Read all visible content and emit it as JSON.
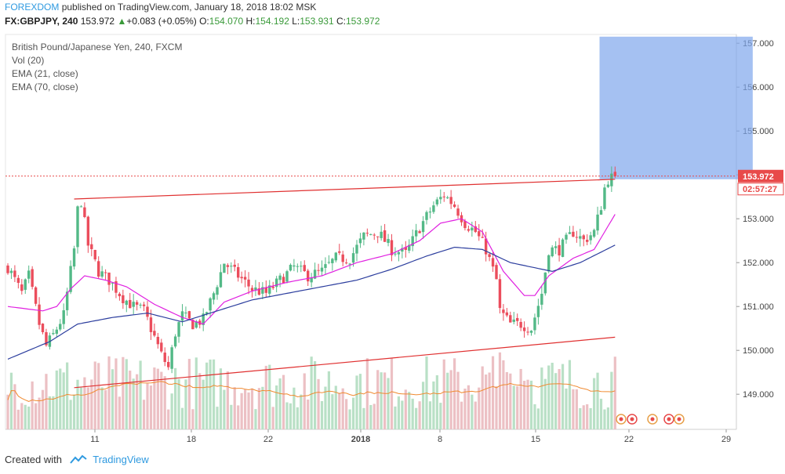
{
  "header": {
    "brand": "FOREXDOM",
    "published": "published on TradingView.com, January 18, 2018 18:02 MSK",
    "symbol": "FX:GBPJPY, 240",
    "last": "153.972",
    "change": "+0.083 (+0.05%)",
    "open_label": "O:",
    "open": "154.070",
    "high_label": "H:",
    "high": "154.192",
    "low_label": "L:",
    "low": "153.931",
    "close_label": "C:",
    "close": "153.972"
  },
  "legend": [
    "British Pound/Japanese Yen, 240, FXCM",
    "Vol (20)",
    "EMA (21, close)",
    "EMA (70, close)"
  ],
  "price_tag": "153.972",
  "time_tag": "02:57:27",
  "footer": {
    "created": "Created with",
    "brand": "TradingView"
  },
  "colors": {
    "up": "#53b987",
    "down": "#eb4d5c",
    "ema21": "#e020e0",
    "ema70": "#2c3e9e",
    "trend": "#e03030",
    "box": "#7fa7ec",
    "vol_up": "#b9e0c6",
    "vol_down": "#ecc0c4",
    "vol_ma": "#f08a30",
    "tag": "#e84a4a"
  },
  "chart_data": {
    "type": "candlestick",
    "y_range": [
      148.2,
      157.2
    ],
    "y_ticks": [
      "157.000",
      "156.000",
      "155.000",
      "154.000",
      "153.000",
      "152.000",
      "151.000",
      "150.000",
      "149.000"
    ],
    "x_ticks": [
      "11",
      "18",
      "22",
      "2018",
      "8",
      "15",
      "22",
      "29"
    ],
    "price_anchors": [
      [
        0,
        151.9
      ],
      [
        4,
        151.3
      ],
      [
        6,
        151.7
      ],
      [
        9,
        150.6
      ],
      [
        11,
        150.1
      ],
      [
        13,
        150.35
      ],
      [
        16,
        150.8
      ],
      [
        19,
        152.3
      ],
      [
        20,
        153.2
      ],
      [
        21,
        153.4
      ],
      [
        23,
        152.4
      ],
      [
        26,
        151.8
      ],
      [
        29,
        151.6
      ],
      [
        33,
        151.2
      ],
      [
        36,
        151.0
      ],
      [
        39,
        150.9
      ],
      [
        42,
        150.3
      ],
      [
        44,
        149.9
      ],
      [
        46,
        149.6
      ],
      [
        48,
        150.4
      ],
      [
        50,
        150.8
      ],
      [
        53,
        150.6
      ],
      [
        56,
        150.7
      ],
      [
        59,
        151.3
      ],
      [
        62,
        152.0
      ],
      [
        66,
        151.7
      ],
      [
        70,
        151.4
      ],
      [
        74,
        151.3
      ],
      [
        78,
        151.6
      ],
      [
        82,
        151.9
      ],
      [
        86,
        151.7
      ],
      [
        90,
        151.8
      ],
      [
        94,
        152.1
      ],
      [
        98,
        152.1
      ],
      [
        102,
        152.6
      ],
      [
        106,
        152.7
      ],
      [
        110,
        152.3
      ],
      [
        114,
        152.2
      ],
      [
        118,
        152.8
      ],
      [
        122,
        153.3
      ],
      [
        125,
        153.55
      ],
      [
        128,
        153.3
      ],
      [
        131,
        152.9
      ],
      [
        134,
        152.7
      ],
      [
        137,
        152.3
      ],
      [
        140,
        151.6
      ],
      [
        141,
        150.9
      ],
      [
        144,
        150.6
      ],
      [
        147,
        150.6
      ],
      [
        150,
        150.5
      ],
      [
        153,
        151.3
      ],
      [
        155,
        152.3
      ],
      [
        158,
        152.3
      ],
      [
        162,
        152.7
      ],
      [
        165,
        152.5
      ],
      [
        168,
        152.7
      ],
      [
        170,
        153.3
      ],
      [
        171,
        153.7
      ],
      [
        172,
        153.9
      ],
      [
        174,
        153.97
      ]
    ],
    "ema21_anchors": [
      [
        0,
        151.0
      ],
      [
        10,
        150.9
      ],
      [
        14,
        151.0
      ],
      [
        18,
        151.4
      ],
      [
        22,
        151.7
      ],
      [
        28,
        151.6
      ],
      [
        34,
        151.45
      ],
      [
        42,
        151.05
      ],
      [
        50,
        150.75
      ],
      [
        56,
        150.6
      ],
      [
        62,
        151.1
      ],
      [
        70,
        151.35
      ],
      [
        80,
        151.55
      ],
      [
        90,
        151.7
      ],
      [
        100,
        152.0
      ],
      [
        110,
        152.2
      ],
      [
        118,
        152.5
      ],
      [
        124,
        152.9
      ],
      [
        130,
        153.0
      ],
      [
        136,
        152.7
      ],
      [
        142,
        151.8
      ],
      [
        148,
        151.25
      ],
      [
        151,
        151.25
      ],
      [
        155,
        151.7
      ],
      [
        162,
        152.1
      ],
      [
        168,
        152.3
      ],
      [
        174,
        153.1
      ]
    ],
    "ema70_anchors": [
      [
        0,
        149.8
      ],
      [
        12,
        150.2
      ],
      [
        20,
        150.6
      ],
      [
        30,
        150.75
      ],
      [
        40,
        150.85
      ],
      [
        50,
        150.65
      ],
      [
        60,
        150.9
      ],
      [
        70,
        151.15
      ],
      [
        80,
        151.3
      ],
      [
        90,
        151.45
      ],
      [
        100,
        151.6
      ],
      [
        110,
        151.85
      ],
      [
        120,
        152.15
      ],
      [
        128,
        152.35
      ],
      [
        136,
        152.3
      ],
      [
        144,
        152.0
      ],
      [
        150,
        151.9
      ],
      [
        156,
        151.8
      ],
      [
        164,
        152.0
      ],
      [
        174,
        152.4
      ]
    ],
    "trend_lines": [
      {
        "from": [
          19,
          153.45
        ],
        "to": [
          174,
          153.9
        ]
      },
      {
        "from": [
          19,
          149.15
        ],
        "to": [
          174,
          150.3
        ]
      }
    ],
    "rect": {
      "x0": 170,
      "x1": 213,
      "y0": 153.9,
      "y1": 157.15
    },
    "last_price": 153.972
  }
}
